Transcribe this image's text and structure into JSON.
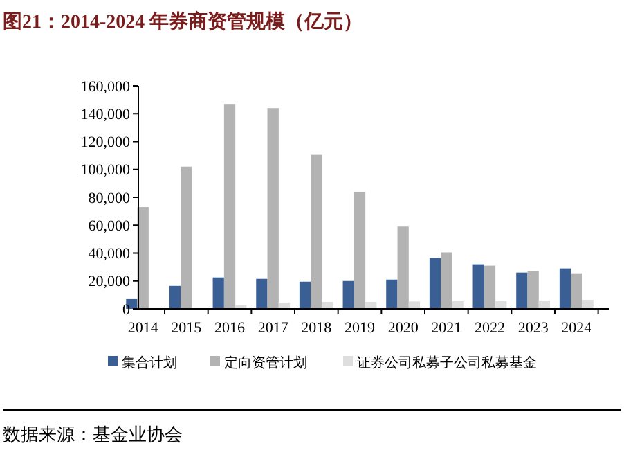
{
  "chart_data": {
    "type": "bar",
    "title": "图21：2014-2024 年券商资管规模（亿元）",
    "categories": [
      "2014",
      "2015",
      "2016",
      "2017",
      "2018",
      "2019",
      "2020",
      "2021",
      "2022",
      "2023",
      "2024"
    ],
    "series": [
      {
        "name": "集合计划",
        "color": "#3a5f94",
        "values": [
          7000,
          16500,
          22500,
          21500,
          19500,
          20000,
          21000,
          36500,
          32000,
          26000,
          29000
        ]
      },
      {
        "name": "定向资管计划",
        "color": "#b3b3b3",
        "values": [
          73000,
          102000,
          147000,
          144000,
          110500,
          84000,
          59000,
          40500,
          31000,
          27000,
          25500
        ]
      },
      {
        "name": "证券公司私募子公司私募基金",
        "color": "#dedede",
        "values": [
          null,
          null,
          3000,
          4500,
          5000,
          5000,
          5300,
          5500,
          5500,
          6000,
          6500
        ]
      }
    ],
    "ylim": [
      0,
      160000
    ],
    "yticks": [
      {
        "value": 0,
        "label": "0"
      },
      {
        "value": 20000,
        "label": "20,000"
      },
      {
        "value": 40000,
        "label": "40,000"
      },
      {
        "value": 60000,
        "label": "60,000"
      },
      {
        "value": 80000,
        "label": "80,000"
      },
      {
        "value": 100000,
        "label": "100,000"
      },
      {
        "value": 120000,
        "label": "120,000"
      },
      {
        "value": 140000,
        "label": "140,000"
      },
      {
        "value": 160000,
        "label": "160,000"
      }
    ],
    "grid": false,
    "legend": "bottom",
    "annotations": [
      "数据来源：基金业协会"
    ]
  }
}
